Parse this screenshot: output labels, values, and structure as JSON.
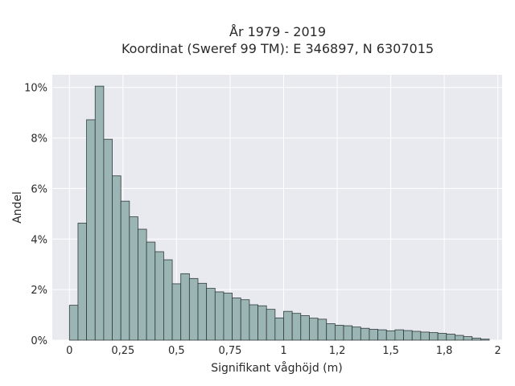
{
  "chart_data": {
    "type": "bar",
    "title": "År 1979 - 2019",
    "subtitle": "Koordinat (Sweref 99 TM): E 346897, N 6307015",
    "xlabel": "Signifikant våghöjd (m)",
    "ylabel": "Andel",
    "xlim": [
      -0.08,
      2.02
    ],
    "ylim": [
      0,
      0.105
    ],
    "bin_width": 0.04,
    "grid": true,
    "bar_color": "#9bb5b4",
    "bar_edge_color": "#2f3b3a",
    "plot_background": "#e9e9f0",
    "x_ticks": [
      {
        "value": 0,
        "label": "0"
      },
      {
        "value": 0.25,
        "label": "0,25"
      },
      {
        "value": 0.5,
        "label": "0,5"
      },
      {
        "value": 0.75,
        "label": "0,75"
      },
      {
        "value": 1,
        "label": "1"
      },
      {
        "value": 1.25,
        "label": "1,2"
      },
      {
        "value": 1.5,
        "label": "1,5"
      },
      {
        "value": 1.75,
        "label": "1,8"
      },
      {
        "value": 2,
        "label": "2"
      }
    ],
    "y_ticks": [
      {
        "value": 0,
        "label": "0%"
      },
      {
        "value": 0.02,
        "label": "2%"
      },
      {
        "value": 0.04,
        "label": "4%"
      },
      {
        "value": 0.06,
        "label": "6%"
      },
      {
        "value": 0.08,
        "label": "8%"
      },
      {
        "value": 0.1,
        "label": "10%"
      }
    ],
    "x": [
      0,
      0.04,
      0.08,
      0.12,
      0.16,
      0.2,
      0.24,
      0.28,
      0.32,
      0.36,
      0.4,
      0.44,
      0.48,
      0.52,
      0.56,
      0.6,
      0.64,
      0.68,
      0.72,
      0.76,
      0.8,
      0.84,
      0.88,
      0.92,
      0.96,
      1.0,
      1.04,
      1.08,
      1.12,
      1.16,
      1.2,
      1.24,
      1.28,
      1.32,
      1.36,
      1.4,
      1.44,
      1.48,
      1.52,
      1.56,
      1.6,
      1.64,
      1.68,
      1.72,
      1.76,
      1.8,
      1.84,
      1.88,
      1.92
    ],
    "values": [
      0.0138,
      0.0463,
      0.0872,
      0.1005,
      0.0795,
      0.065,
      0.055,
      0.0488,
      0.0439,
      0.0388,
      0.035,
      0.0318,
      0.0223,
      0.0263,
      0.0244,
      0.0225,
      0.0205,
      0.0191,
      0.0186,
      0.0167,
      0.016,
      0.014,
      0.0136,
      0.0122,
      0.0088,
      0.0114,
      0.0106,
      0.0097,
      0.0087,
      0.0083,
      0.0065,
      0.0059,
      0.0057,
      0.0052,
      0.0047,
      0.0043,
      0.0041,
      0.0037,
      0.0041,
      0.0038,
      0.0035,
      0.0032,
      0.003,
      0.0027,
      0.0024,
      0.0019,
      0.0014,
      0.0008,
      0.0004
    ]
  }
}
